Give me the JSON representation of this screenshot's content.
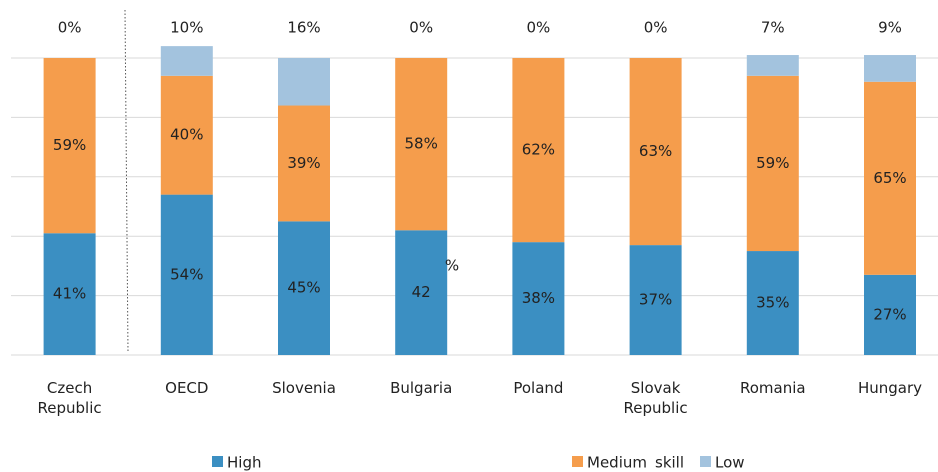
{
  "chart_data": {
    "type": "stacked_bar",
    "categories": [
      "Czech Republic",
      "OECD",
      "Slovenia",
      "Bulgaria",
      "Poland",
      "Slovak Republic",
      "Romania",
      "Hungary"
    ],
    "series": [
      {
        "name": "High",
        "color": "#3b8fc2",
        "values": [
          41,
          54,
          45,
          42,
          38,
          37,
          35,
          27
        ],
        "value_labels": [
          "41%",
          "54%",
          "45%",
          "42",
          "38%",
          "37%",
          "35%",
          "27%"
        ]
      },
      {
        "name": "Medium",
        "color": "#f59d4c",
        "values": [
          59,
          40,
          39,
          58,
          62,
          63,
          59,
          65
        ],
        "value_labels": [
          "59%",
          "40%",
          "39%",
          "58%",
          "62%",
          "63%",
          "59%",
          "65%"
        ]
      },
      {
        "name": "Low",
        "color": "#a3c3de",
        "values": [
          0,
          10,
          16,
          0,
          0,
          0,
          7,
          9
        ],
        "value_labels": [
          "0%",
          "10%",
          "16%",
          "0%",
          "0%",
          "0%",
          "7%",
          "9%"
        ]
      }
    ],
    "annotation": "%",
    "legend_note": "skill",
    "ylim": [
      0,
      100
    ],
    "yticks": [
      0,
      20,
      40,
      60,
      80,
      100
    ],
    "grid": true,
    "legend": "bottom"
  }
}
